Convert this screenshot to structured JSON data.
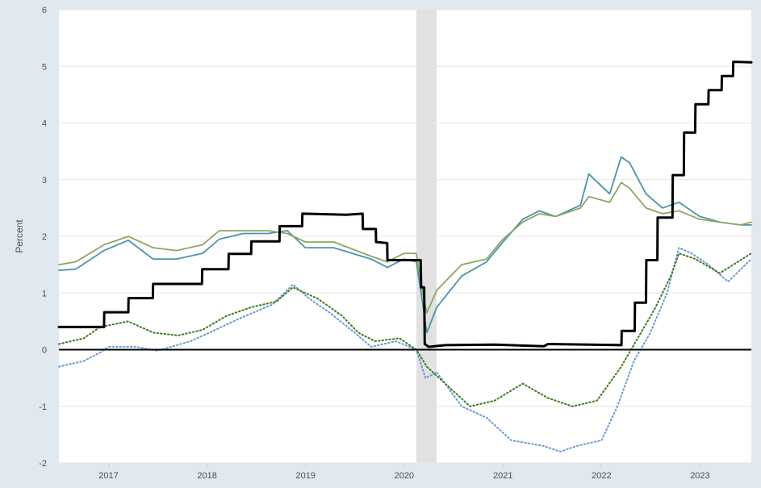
{
  "colors": {
    "background": "#e1e9f0",
    "plot_bg": "#ffffff",
    "grid": "#e6e6e6",
    "recession": "#e1e1e1",
    "text": "#4d4d4d",
    "zero_line": "#000000"
  },
  "chart_data": {
    "type": "line",
    "ylabel": "Percent",
    "ylim": [
      -2,
      6
    ],
    "yticks": [
      -2,
      -1,
      0,
      1,
      2,
      3,
      4,
      5,
      6
    ],
    "xlim": [
      "2016-07-01",
      "2023-07-10"
    ],
    "xticks": [
      {
        "date": "2017-01-01",
        "label": "2017"
      },
      {
        "date": "2018-01-01",
        "label": "2018"
      },
      {
        "date": "2019-01-01",
        "label": "2019"
      },
      {
        "date": "2020-01-01",
        "label": "2020"
      },
      {
        "date": "2021-01-01",
        "label": "2021"
      },
      {
        "date": "2022-01-01",
        "label": "2022"
      },
      {
        "date": "2023-01-01",
        "label": "2023"
      }
    ],
    "grid": true,
    "recession": {
      "start": "2020-02-15",
      "end": "2020-04-30"
    },
    "series": [
      {
        "style": "solid",
        "color": "#000000",
        "width": 3,
        "points": [
          [
            "2016-07-01",
            0.4
          ],
          [
            "2016-12-15",
            0.4
          ],
          [
            "2016-12-16",
            0.66
          ],
          [
            "2017-03-15",
            0.66
          ],
          [
            "2017-03-16",
            0.91
          ],
          [
            "2017-06-14",
            0.91
          ],
          [
            "2017-06-15",
            1.16
          ],
          [
            "2017-12-13",
            1.16
          ],
          [
            "2017-12-14",
            1.42
          ],
          [
            "2018-03-21",
            1.42
          ],
          [
            "2018-03-22",
            1.69
          ],
          [
            "2018-06-13",
            1.69
          ],
          [
            "2018-06-14",
            1.91
          ],
          [
            "2018-09-26",
            1.91
          ],
          [
            "2018-09-27",
            2.18
          ],
          [
            "2018-12-19",
            2.18
          ],
          [
            "2018-12-20",
            2.4
          ],
          [
            "2019-06-01",
            2.38
          ],
          [
            "2019-07-31",
            2.4
          ],
          [
            "2019-08-01",
            2.13
          ],
          [
            "2019-09-18",
            2.13
          ],
          [
            "2019-09-19",
            1.9
          ],
          [
            "2019-10-30",
            1.88
          ],
          [
            "2019-10-31",
            1.58
          ],
          [
            "2020-03-02",
            1.58
          ],
          [
            "2020-03-04",
            1.1
          ],
          [
            "2020-03-15",
            1.1
          ],
          [
            "2020-03-17",
            0.1
          ],
          [
            "2020-04-01",
            0.05
          ],
          [
            "2020-06-01",
            0.08
          ],
          [
            "2020-12-01",
            0.09
          ],
          [
            "2021-06-01",
            0.06
          ],
          [
            "2021-06-17",
            0.1
          ],
          [
            "2022-03-16",
            0.08
          ],
          [
            "2022-03-17",
            0.33
          ],
          [
            "2022-05-04",
            0.33
          ],
          [
            "2022-05-05",
            0.83
          ],
          [
            "2022-06-15",
            0.83
          ],
          [
            "2022-06-16",
            1.58
          ],
          [
            "2022-07-27",
            1.58
          ],
          [
            "2022-07-28",
            2.33
          ],
          [
            "2022-09-21",
            2.33
          ],
          [
            "2022-09-22",
            3.08
          ],
          [
            "2022-11-02",
            3.08
          ],
          [
            "2022-11-03",
            3.83
          ],
          [
            "2022-12-14",
            3.83
          ],
          [
            "2022-12-15",
            4.33
          ],
          [
            "2023-02-01",
            4.33
          ],
          [
            "2023-02-02",
            4.58
          ],
          [
            "2023-03-22",
            4.58
          ],
          [
            "2023-03-23",
            4.83
          ],
          [
            "2023-05-03",
            4.83
          ],
          [
            "2023-05-04",
            5.08
          ],
          [
            "2023-07-10",
            5.07
          ]
        ]
      },
      {
        "style": "solid",
        "color": "#4b94ad",
        "width": 1.8,
        "points": [
          [
            "2016-07-01",
            1.4
          ],
          [
            "2016-09-01",
            1.42
          ],
          [
            "2016-12-15",
            1.75
          ],
          [
            "2017-03-15",
            1.93
          ],
          [
            "2017-06-15",
            1.6
          ],
          [
            "2017-09-10",
            1.6
          ],
          [
            "2017-12-15",
            1.7
          ],
          [
            "2018-02-15",
            1.95
          ],
          [
            "2018-05-15",
            2.05
          ],
          [
            "2018-08-15",
            2.05
          ],
          [
            "2018-10-25",
            2.1
          ],
          [
            "2018-12-31",
            1.8
          ],
          [
            "2019-04-15",
            1.8
          ],
          [
            "2019-08-31",
            1.6
          ],
          [
            "2019-10-31",
            1.45
          ],
          [
            "2019-12-31",
            1.6
          ],
          [
            "2020-02-15",
            1.55
          ],
          [
            "2020-03-10",
            0.8
          ],
          [
            "2020-03-25",
            0.3
          ],
          [
            "2020-05-01",
            0.75
          ],
          [
            "2020-08-01",
            1.3
          ],
          [
            "2020-11-01",
            1.55
          ],
          [
            "2021-01-01",
            1.9
          ],
          [
            "2021-03-15",
            2.3
          ],
          [
            "2021-05-15",
            2.45
          ],
          [
            "2021-07-15",
            2.35
          ],
          [
            "2021-10-15",
            2.55
          ],
          [
            "2021-11-15",
            3.1
          ],
          [
            "2022-01-31",
            2.75
          ],
          [
            "2022-03-15",
            3.4
          ],
          [
            "2022-04-15",
            3.3
          ],
          [
            "2022-06-15",
            2.75
          ],
          [
            "2022-08-15",
            2.5
          ],
          [
            "2022-10-15",
            2.6
          ],
          [
            "2022-12-31",
            2.35
          ],
          [
            "2023-03-15",
            2.25
          ],
          [
            "2023-05-31",
            2.2
          ],
          [
            "2023-07-10",
            2.2
          ]
        ]
      },
      {
        "style": "solid",
        "color": "#8ba85c",
        "width": 1.8,
        "points": [
          [
            "2016-07-01",
            1.5
          ],
          [
            "2016-09-01",
            1.55
          ],
          [
            "2016-12-15",
            1.85
          ],
          [
            "2017-03-15",
            2.0
          ],
          [
            "2017-06-15",
            1.8
          ],
          [
            "2017-09-10",
            1.75
          ],
          [
            "2017-12-15",
            1.85
          ],
          [
            "2018-02-15",
            2.1
          ],
          [
            "2018-05-15",
            2.1
          ],
          [
            "2018-08-15",
            2.1
          ],
          [
            "2018-10-25",
            2.05
          ],
          [
            "2018-12-31",
            1.9
          ],
          [
            "2019-04-15",
            1.9
          ],
          [
            "2019-08-31",
            1.65
          ],
          [
            "2019-10-31",
            1.55
          ],
          [
            "2019-12-31",
            1.7
          ],
          [
            "2020-02-15",
            1.7
          ],
          [
            "2020-03-10",
            1.0
          ],
          [
            "2020-03-25",
            0.65
          ],
          [
            "2020-05-01",
            1.05
          ],
          [
            "2020-08-01",
            1.5
          ],
          [
            "2020-11-01",
            1.6
          ],
          [
            "2021-01-01",
            1.95
          ],
          [
            "2021-03-15",
            2.25
          ],
          [
            "2021-05-15",
            2.4
          ],
          [
            "2021-07-15",
            2.35
          ],
          [
            "2021-10-15",
            2.5
          ],
          [
            "2021-11-15",
            2.7
          ],
          [
            "2022-01-31",
            2.6
          ],
          [
            "2022-03-15",
            2.95
          ],
          [
            "2022-04-15",
            2.85
          ],
          [
            "2022-06-15",
            2.5
          ],
          [
            "2022-08-15",
            2.4
          ],
          [
            "2022-10-15",
            2.45
          ],
          [
            "2022-12-31",
            2.3
          ],
          [
            "2023-03-15",
            2.25
          ],
          [
            "2023-05-31",
            2.2
          ],
          [
            "2023-07-10",
            2.25
          ]
        ]
      },
      {
        "style": "dotted",
        "color": "#6b9bd6",
        "width": 2,
        "points": [
          [
            "2016-07-01",
            -0.3
          ],
          [
            "2016-10-01",
            -0.2
          ],
          [
            "2016-12-01",
            -0.05
          ],
          [
            "2017-01-01",
            0.05
          ],
          [
            "2017-04-15",
            0.05
          ],
          [
            "2017-07-01",
            -0.02
          ],
          [
            "2017-11-01",
            0.15
          ],
          [
            "2018-02-01",
            0.35
          ],
          [
            "2018-05-01",
            0.55
          ],
          [
            "2018-09-01",
            0.8
          ],
          [
            "2018-11-15",
            1.15
          ],
          [
            "2019-01-15",
            0.9
          ],
          [
            "2019-04-01",
            0.65
          ],
          [
            "2019-07-01",
            0.3
          ],
          [
            "2019-09-01",
            0.05
          ],
          [
            "2019-12-01",
            0.15
          ],
          [
            "2020-02-15",
            0.0
          ],
          [
            "2020-03-20",
            -0.5
          ],
          [
            "2020-05-01",
            -0.4
          ],
          [
            "2020-08-01",
            -1.0
          ],
          [
            "2020-11-01",
            -1.2
          ],
          [
            "2021-02-01",
            -1.6
          ],
          [
            "2021-06-01",
            -1.7
          ],
          [
            "2021-08-01",
            -1.8
          ],
          [
            "2021-10-01",
            -1.7
          ],
          [
            "2022-01-01",
            -1.6
          ],
          [
            "2022-03-01",
            -1.0
          ],
          [
            "2022-05-01",
            -0.2
          ],
          [
            "2022-07-01",
            0.3
          ],
          [
            "2022-09-01",
            1.0
          ],
          [
            "2022-10-15",
            1.8
          ],
          [
            "2022-12-01",
            1.7
          ],
          [
            "2023-02-01",
            1.5
          ],
          [
            "2023-04-15",
            1.2
          ],
          [
            "2023-07-10",
            1.6
          ]
        ]
      },
      {
        "style": "dotted",
        "color": "#3f7a1e",
        "width": 2,
        "points": [
          [
            "2016-07-01",
            0.1
          ],
          [
            "2016-10-01",
            0.2
          ],
          [
            "2016-12-01",
            0.4
          ],
          [
            "2017-03-15",
            0.5
          ],
          [
            "2017-06-15",
            0.3
          ],
          [
            "2017-09-15",
            0.25
          ],
          [
            "2017-12-15",
            0.35
          ],
          [
            "2018-03-15",
            0.6
          ],
          [
            "2018-06-15",
            0.75
          ],
          [
            "2018-09-15",
            0.85
          ],
          [
            "2018-11-15",
            1.1
          ],
          [
            "2019-02-15",
            0.9
          ],
          [
            "2019-05-15",
            0.6
          ],
          [
            "2019-07-15",
            0.3
          ],
          [
            "2019-09-15",
            0.15
          ],
          [
            "2019-12-15",
            0.2
          ],
          [
            "2020-02-15",
            0.0
          ],
          [
            "2020-03-25",
            -0.3
          ],
          [
            "2020-06-01",
            -0.6
          ],
          [
            "2020-09-01",
            -1.0
          ],
          [
            "2020-12-01",
            -0.9
          ],
          [
            "2021-03-15",
            -0.6
          ],
          [
            "2021-06-15",
            -0.85
          ],
          [
            "2021-09-15",
            -1.0
          ],
          [
            "2021-12-15",
            -0.9
          ],
          [
            "2022-03-15",
            -0.3
          ],
          [
            "2022-05-15",
            0.2
          ],
          [
            "2022-07-15",
            0.7
          ],
          [
            "2022-09-15",
            1.3
          ],
          [
            "2022-10-15",
            1.7
          ],
          [
            "2022-12-15",
            1.6
          ],
          [
            "2023-03-15",
            1.35
          ],
          [
            "2023-07-10",
            1.7
          ]
        ]
      }
    ]
  }
}
